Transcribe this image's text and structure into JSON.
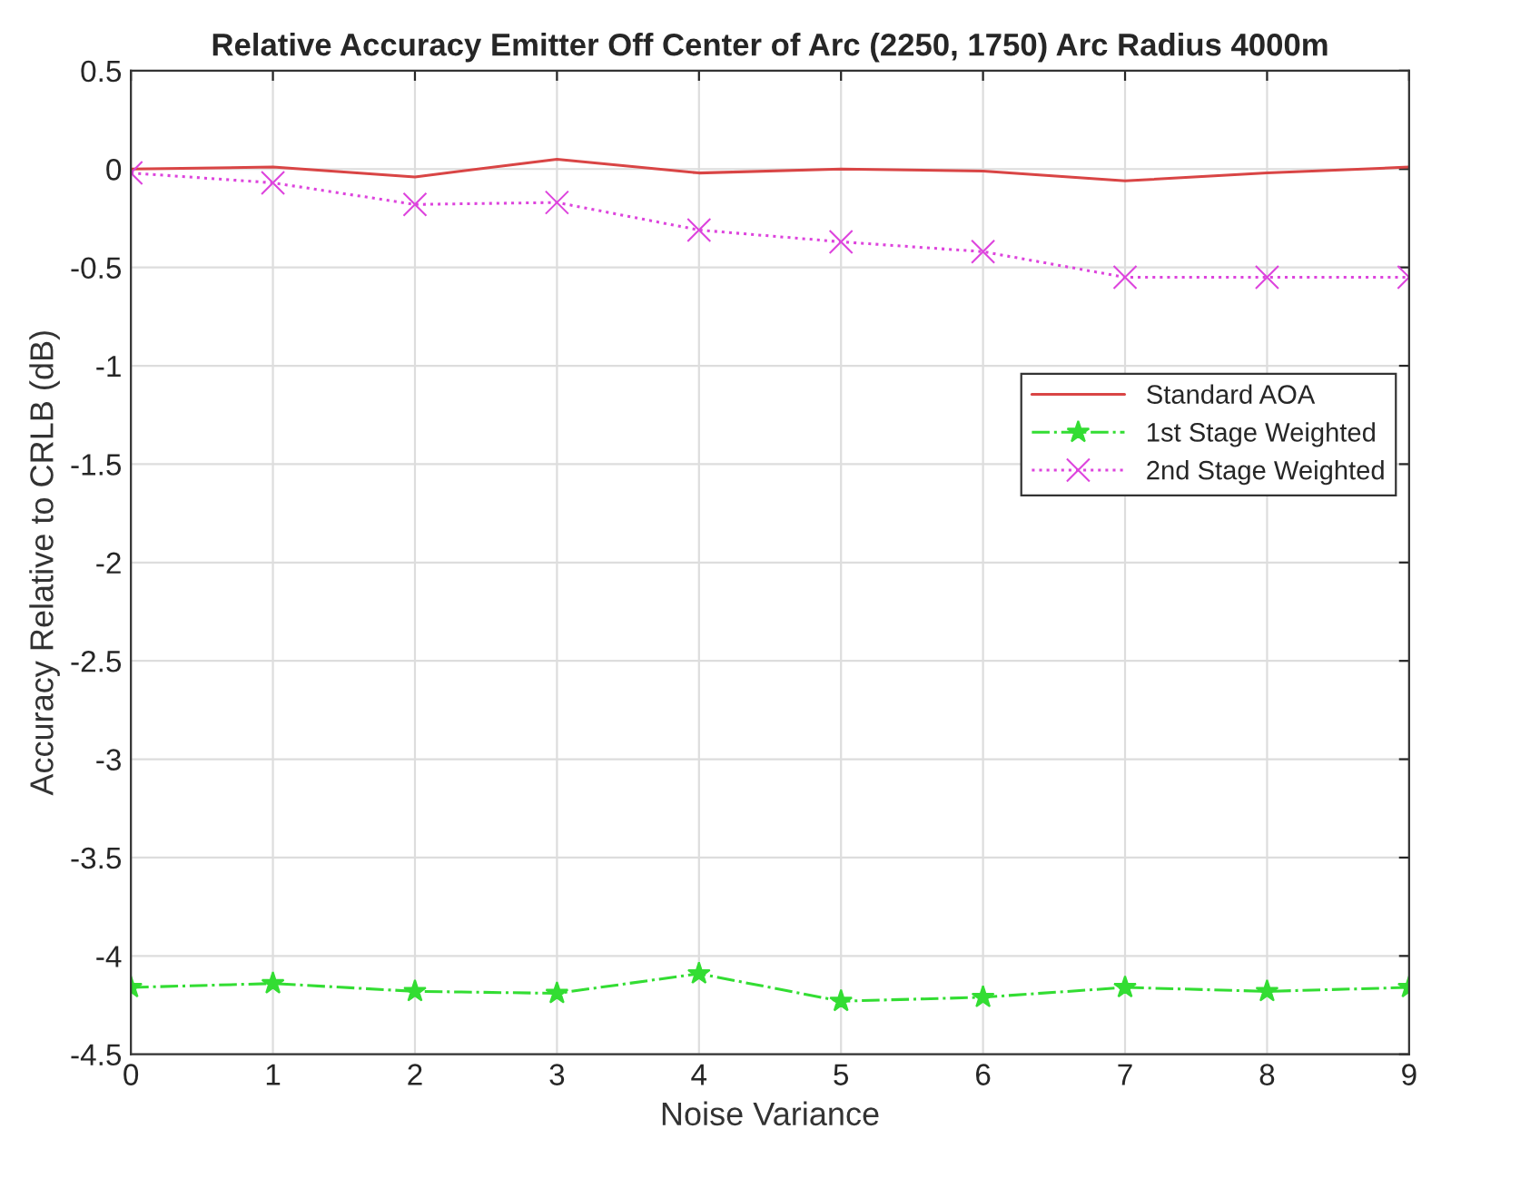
{
  "chart_data": {
    "type": "line",
    "title": "Relative Accuracy Emitter Off Center of Arc (2250, 1750) Arc Radius 4000m",
    "xlabel": "Noise Variance",
    "ylabel": "Accuracy Relative to CRLB (dB)",
    "x": [
      0,
      1,
      2,
      3,
      4,
      5,
      6,
      7,
      8,
      9
    ],
    "series": [
      {
        "name": "Standard AOA",
        "color": "#d94545",
        "marker": "none",
        "line_style": "solid",
        "values": [
          0.0,
          0.01,
          -0.04,
          0.05,
          -0.02,
          0.0,
          -0.01,
          -0.06,
          -0.02,
          0.01
        ]
      },
      {
        "name": "1st Stage Weighted",
        "color": "#33dd33",
        "marker": "star",
        "line_style": "dashdot",
        "values": [
          -4.16,
          -4.14,
          -4.18,
          -4.19,
          -4.09,
          -4.23,
          -4.21,
          -4.16,
          -4.18,
          -4.16
        ]
      },
      {
        "name": "2nd Stage Weighted",
        "color": "#dd44dd",
        "marker": "cross",
        "line_style": "dotted",
        "values": [
          -0.02,
          -0.07,
          -0.18,
          -0.17,
          -0.31,
          -0.37,
          -0.42,
          -0.55,
          -0.55,
          -0.55
        ]
      }
    ],
    "xlim": [
      0,
      9
    ],
    "xticks": [
      0,
      1,
      2,
      3,
      4,
      5,
      6,
      7,
      8,
      9
    ],
    "ylim": [
      -4.5,
      0.5
    ],
    "yticks": [
      {
        "value": -4.5,
        "label": "-4.5"
      },
      {
        "value": -4,
        "label": "-4"
      },
      {
        "value": -3.5,
        "label": "-3.5"
      },
      {
        "value": -3,
        "label": "-3"
      },
      {
        "value": -2.5,
        "label": "-2.5"
      },
      {
        "value": -2,
        "label": "-2"
      },
      {
        "value": -1.5,
        "label": "-1.5"
      },
      {
        "value": -1,
        "label": "-1"
      },
      {
        "value": -0.5,
        "label": "-0.5"
      },
      {
        "value": 0,
        "label": "0"
      },
      {
        "value": 0.5,
        "label": "0.5"
      }
    ],
    "grid": true,
    "legend": "right"
  }
}
